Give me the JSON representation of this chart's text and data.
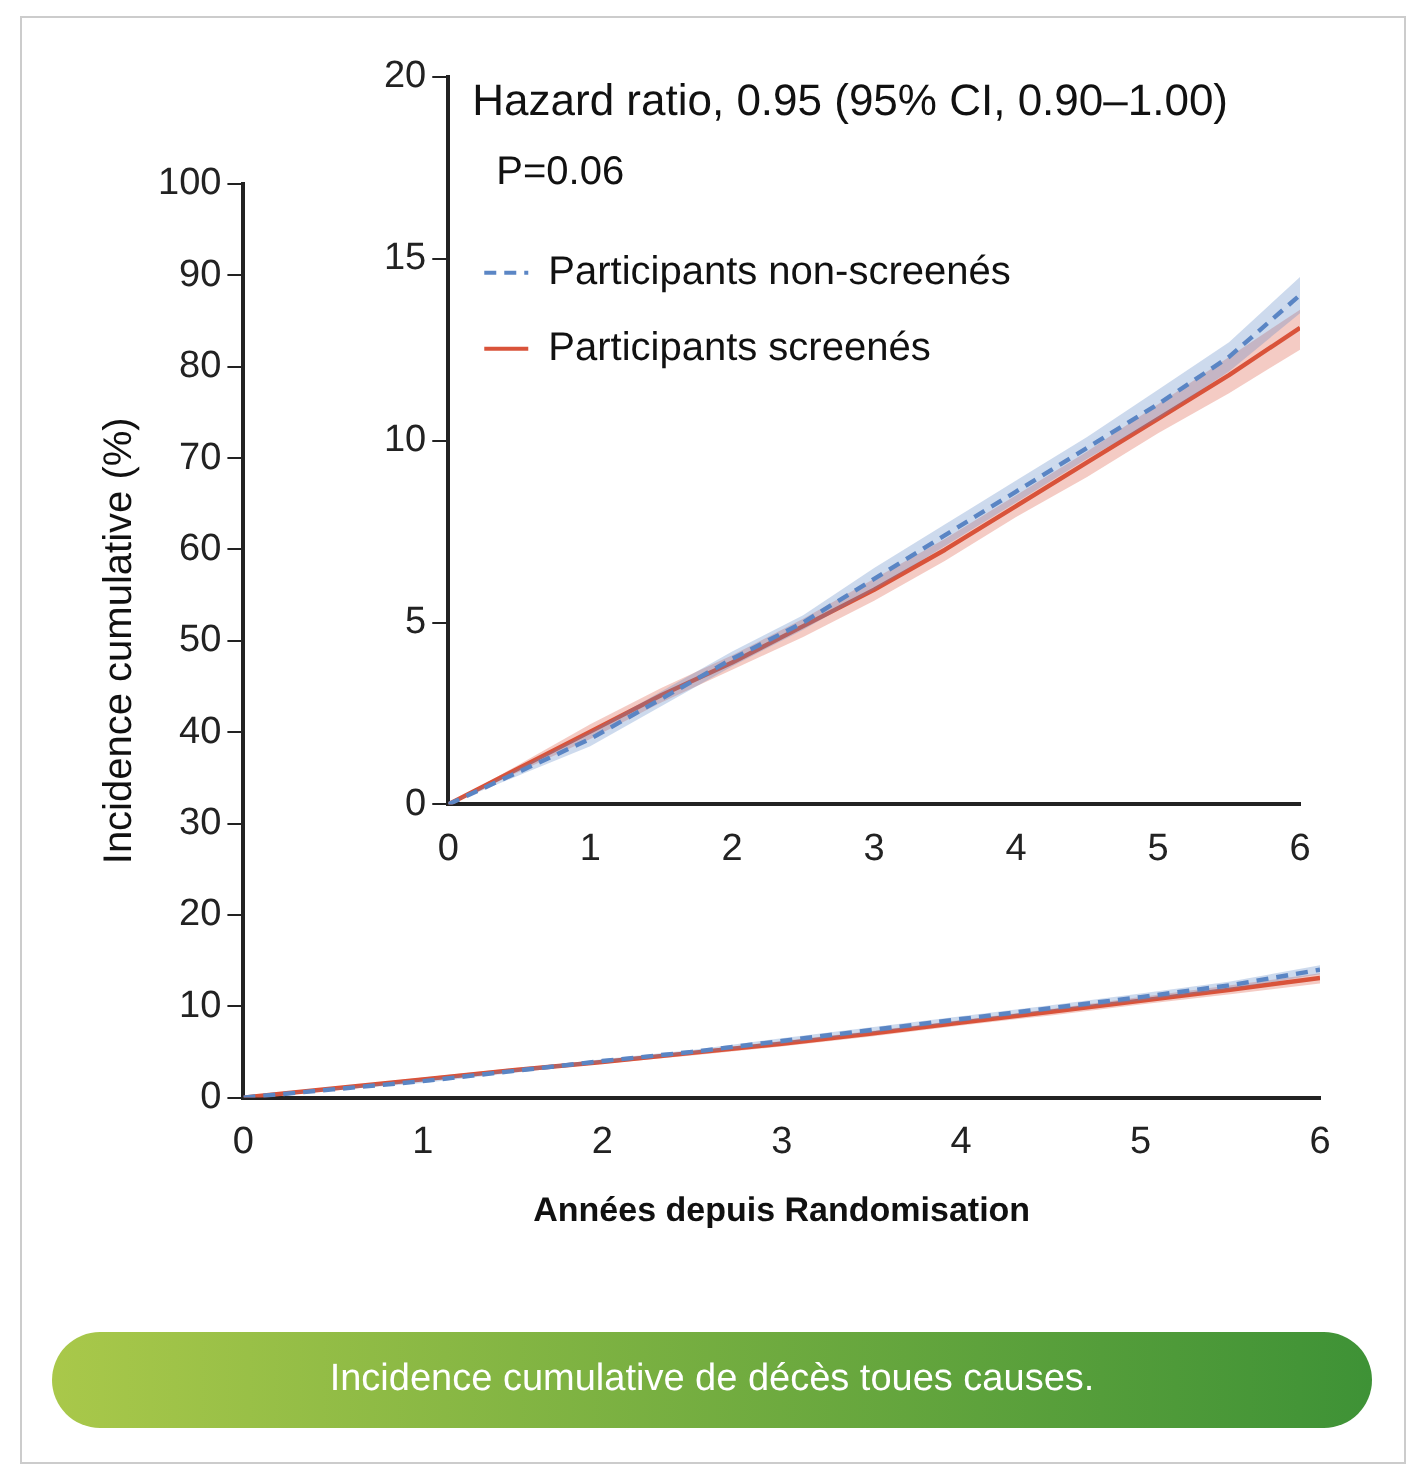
{
  "chart_data": [
    {
      "type": "line",
      "xlabel": "Années depuis Randomisation",
      "ylabel": "Incidence cumulative (%)",
      "x": [
        0,
        0.5,
        1,
        1.5,
        2,
        2.5,
        3,
        3.5,
        4,
        4.5,
        5,
        5.5,
        6
      ],
      "xlim": [
        0,
        6
      ],
      "xticks": [
        0,
        1,
        2,
        3,
        4,
        5,
        6
      ],
      "ylim": [
        0,
        100
      ],
      "yticks": [
        0,
        10,
        20,
        30,
        40,
        50,
        60,
        70,
        80,
        90,
        100
      ],
      "series": [
        {
          "color": "#5b86c5",
          "line_style": "dashed",
          "values": [
            0,
            0.9,
            1.8,
            2.9,
            4.0,
            5.0,
            6.2,
            7.4,
            8.6,
            9.8,
            11.0,
            12.3,
            14.0
          ],
          "lower": [
            0,
            0.8,
            1.6,
            2.7,
            3.8,
            4.8,
            5.9,
            7.1,
            8.3,
            9.5,
            10.6,
            11.9,
            13.5
          ],
          "upper": [
            0,
            1.0,
            2.0,
            3.1,
            4.2,
            5.2,
            6.5,
            7.7,
            8.9,
            10.1,
            11.4,
            12.7,
            14.5
          ]
        },
        {
          "color": "#d9533a",
          "line_style": "solid",
          "values": [
            0,
            1.0,
            2.0,
            3.0,
            3.9,
            4.9,
            5.9,
            7.0,
            8.2,
            9.4,
            10.6,
            11.8,
            13.1
          ],
          "lower": [
            0,
            0.9,
            1.8,
            2.8,
            3.7,
            4.6,
            5.6,
            6.7,
            7.9,
            9.0,
            10.2,
            11.3,
            12.5
          ],
          "upper": [
            0,
            1.1,
            2.2,
            3.2,
            4.1,
            5.1,
            6.2,
            7.3,
            8.5,
            9.7,
            11.0,
            12.3,
            13.6
          ]
        }
      ],
      "annotations": [
        "Incidence cumulative de décès toues causes."
      ]
    },
    {
      "type": "line",
      "x": [
        0,
        0.5,
        1,
        1.5,
        2,
        2.5,
        3,
        3.5,
        4,
        4.5,
        5,
        5.5,
        6
      ],
      "xlim": [
        0,
        6
      ],
      "xticks": [
        0,
        1,
        2,
        3,
        4,
        5,
        6
      ],
      "ylim": [
        0,
        20
      ],
      "yticks": [
        0,
        5,
        10,
        15,
        20
      ],
      "legend": "top left",
      "series": [
        {
          "name": "Participants non-screenés",
          "color": "#5b86c5",
          "line_style": "dashed",
          "values": [
            0,
            0.9,
            1.8,
            2.9,
            4.0,
            5.0,
            6.2,
            7.4,
            8.6,
            9.8,
            11.0,
            12.3,
            14.0
          ],
          "lower": [
            0,
            0.8,
            1.6,
            2.7,
            3.8,
            4.8,
            5.9,
            7.1,
            8.3,
            9.5,
            10.6,
            11.9,
            13.5
          ],
          "upper": [
            0,
            1.0,
            2.0,
            3.1,
            4.2,
            5.2,
            6.5,
            7.7,
            8.9,
            10.1,
            11.4,
            12.7,
            14.5
          ]
        },
        {
          "name": "Participants screenés",
          "color": "#d9533a",
          "line_style": "solid",
          "values": [
            0,
            1.0,
            2.0,
            3.0,
            3.9,
            4.9,
            5.9,
            7.0,
            8.2,
            9.4,
            10.6,
            11.8,
            13.1
          ],
          "lower": [
            0,
            0.9,
            1.8,
            2.8,
            3.7,
            4.6,
            5.6,
            6.7,
            7.9,
            9.0,
            10.2,
            11.3,
            12.5
          ],
          "upper": [
            0,
            1.1,
            2.2,
            3.2,
            4.1,
            5.1,
            6.2,
            7.3,
            8.5,
            9.7,
            11.0,
            12.3,
            13.6
          ]
        }
      ],
      "annotations": [
        "Hazard ratio, 0.95 (95% CI, 0.90–1.00)",
        "P=0.06"
      ]
    }
  ]
}
